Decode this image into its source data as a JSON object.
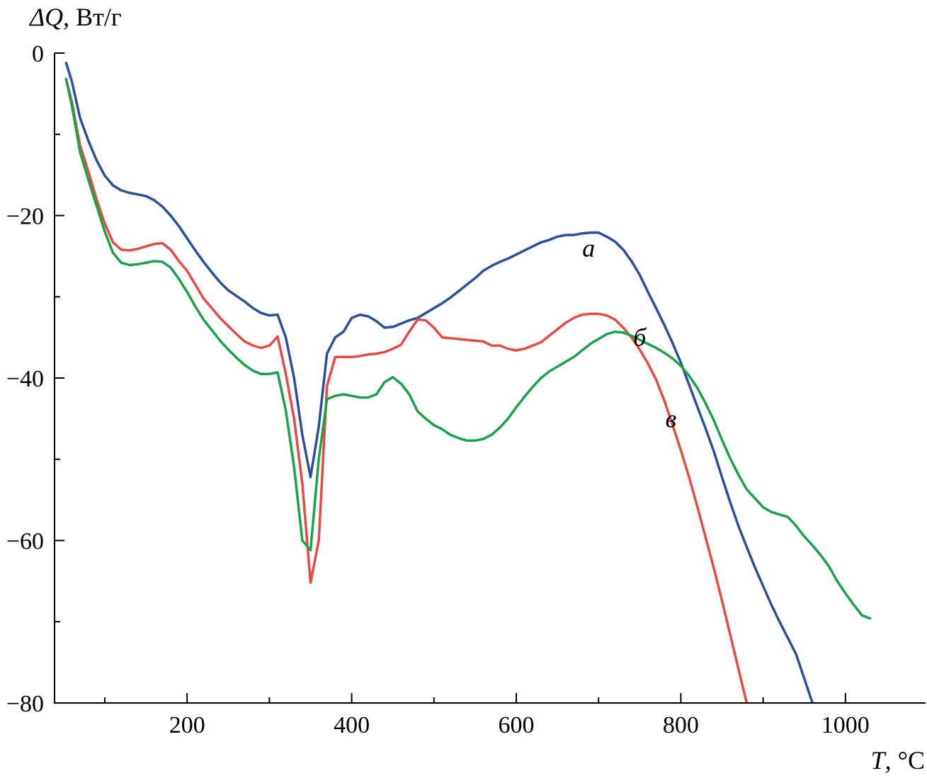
{
  "chart_data": {
    "type": "line",
    "title": "",
    "ylabel_symbol": "ΔQ",
    "ylabel_unit": ", Вт/г",
    "xlabel_symbol": "T",
    "xlabel_unit": ", °C",
    "xlim": [
      50,
      1100
    ],
    "ylim": [
      -80,
      0
    ],
    "x_major_ticks": [
      200,
      400,
      600,
      800,
      1000
    ],
    "x_minor_ticks": [
      100,
      300,
      500,
      700,
      900,
      1100
    ],
    "y_major_ticks": [
      0,
      -20,
      -40,
      -60,
      -80
    ],
    "y_minor_ticks": [
      -10,
      -30,
      -50,
      -70
    ],
    "x_tick_labels": [
      "200",
      "400",
      "600",
      "800",
      "1000"
    ],
    "y_tick_labels": [
      "0",
      "−20",
      "−40",
      "−60",
      "−80"
    ],
    "grid": false,
    "series": [
      {
        "name": "а",
        "color": "#2a4f9e",
        "label_at": [
          688,
          -24
        ],
        "points": [
          [
            53,
            -1.2
          ],
          [
            60,
            -3.5
          ],
          [
            70,
            -8
          ],
          [
            80,
            -10.8
          ],
          [
            90,
            -13.2
          ],
          [
            100,
            -15.1
          ],
          [
            110,
            -16.3
          ],
          [
            120,
            -16.9
          ],
          [
            130,
            -17.2
          ],
          [
            140,
            -17.4
          ],
          [
            150,
            -17.6
          ],
          [
            160,
            -18.1
          ],
          [
            170,
            -18.9
          ],
          [
            180,
            -20
          ],
          [
            190,
            -21.3
          ],
          [
            200,
            -22.8
          ],
          [
            210,
            -24.3
          ],
          [
            220,
            -25.7
          ],
          [
            230,
            -27
          ],
          [
            240,
            -28.2
          ],
          [
            250,
            -29.2
          ],
          [
            260,
            -29.9
          ],
          [
            270,
            -30.6
          ],
          [
            280,
            -31.4
          ],
          [
            290,
            -32
          ],
          [
            300,
            -32.3
          ],
          [
            310,
            -32.2
          ],
          [
            320,
            -35
          ],
          [
            330,
            -40
          ],
          [
            340,
            -47
          ],
          [
            350,
            -52.2
          ],
          [
            360,
            -46
          ],
          [
            370,
            -37
          ],
          [
            380,
            -35
          ],
          [
            390,
            -34.3
          ],
          [
            400,
            -32.6
          ],
          [
            410,
            -32.2
          ],
          [
            420,
            -32.4
          ],
          [
            430,
            -33
          ],
          [
            440,
            -33.8
          ],
          [
            450,
            -33.7
          ],
          [
            460,
            -33.3
          ],
          [
            470,
            -32.9
          ],
          [
            480,
            -32.6
          ],
          [
            490,
            -32
          ],
          [
            500,
            -31.4
          ],
          [
            510,
            -30.8
          ],
          [
            520,
            -30.1
          ],
          [
            530,
            -29.3
          ],
          [
            540,
            -28.5
          ],
          [
            550,
            -27.7
          ],
          [
            560,
            -26.8
          ],
          [
            570,
            -26.2
          ],
          [
            580,
            -25.7
          ],
          [
            590,
            -25.3
          ],
          [
            600,
            -24.8
          ],
          [
            610,
            -24.3
          ],
          [
            620,
            -23.8
          ],
          [
            630,
            -23.3
          ],
          [
            640,
            -23
          ],
          [
            650,
            -22.6
          ],
          [
            660,
            -22.4
          ],
          [
            670,
            -22.4
          ],
          [
            680,
            -22.2
          ],
          [
            690,
            -22.1
          ],
          [
            700,
            -22.1
          ],
          [
            710,
            -22.6
          ],
          [
            720,
            -23.2
          ],
          [
            730,
            -24.2
          ],
          [
            740,
            -25.6
          ],
          [
            750,
            -27.3
          ],
          [
            760,
            -29.4
          ],
          [
            770,
            -31.4
          ],
          [
            780,
            -33.5
          ],
          [
            790,
            -35.7
          ],
          [
            800,
            -38.1
          ],
          [
            810,
            -40.8
          ],
          [
            820,
            -43.5
          ],
          [
            830,
            -46.2
          ],
          [
            840,
            -49
          ],
          [
            850,
            -52.2
          ],
          [
            860,
            -55.3
          ],
          [
            870,
            -58.2
          ],
          [
            880,
            -60.8
          ],
          [
            890,
            -63.3
          ],
          [
            900,
            -65.6
          ],
          [
            910,
            -67.9
          ],
          [
            920,
            -70
          ],
          [
            930,
            -72
          ],
          [
            940,
            -74
          ],
          [
            950,
            -77
          ],
          [
            960,
            -80
          ],
          [
            968,
            -82.5
          ]
        ]
      },
      {
        "name": "б",
        "color": "#e64a44",
        "label_at": [
          750,
          -35
        ],
        "points": [
          [
            53,
            -3.2
          ],
          [
            60,
            -6
          ],
          [
            70,
            -11.4
          ],
          [
            80,
            -14.6
          ],
          [
            90,
            -18
          ],
          [
            100,
            -21
          ],
          [
            110,
            -23.3
          ],
          [
            120,
            -24.2
          ],
          [
            130,
            -24.3
          ],
          [
            140,
            -24.1
          ],
          [
            150,
            -23.8
          ],
          [
            160,
            -23.5
          ],
          [
            170,
            -23.4
          ],
          [
            180,
            -24.2
          ],
          [
            190,
            -25.6
          ],
          [
            200,
            -26.8
          ],
          [
            210,
            -28.5
          ],
          [
            220,
            -30.2
          ],
          [
            230,
            -31.4
          ],
          [
            240,
            -32.6
          ],
          [
            250,
            -33.6
          ],
          [
            260,
            -34.6
          ],
          [
            270,
            -35.5
          ],
          [
            280,
            -36
          ],
          [
            290,
            -36.3
          ],
          [
            300,
            -36
          ],
          [
            310,
            -34.9
          ],
          [
            320,
            -39.5
          ],
          [
            330,
            -45
          ],
          [
            340,
            -53
          ],
          [
            350,
            -65.2
          ],
          [
            360,
            -60
          ],
          [
            370,
            -41
          ],
          [
            380,
            -37.4
          ],
          [
            390,
            -37.4
          ],
          [
            400,
            -37.4
          ],
          [
            410,
            -37.3
          ],
          [
            420,
            -37.1
          ],
          [
            430,
            -37
          ],
          [
            440,
            -36.8
          ],
          [
            450,
            -36.4
          ],
          [
            460,
            -35.9
          ],
          [
            470,
            -34.3
          ],
          [
            480,
            -32.8
          ],
          [
            490,
            -32.9
          ],
          [
            500,
            -33.8
          ],
          [
            510,
            -35
          ],
          [
            520,
            -35.1
          ],
          [
            530,
            -35.2
          ],
          [
            540,
            -35.3
          ],
          [
            550,
            -35.4
          ],
          [
            560,
            -35.5
          ],
          [
            570,
            -36
          ],
          [
            580,
            -36
          ],
          [
            590,
            -36.4
          ],
          [
            600,
            -36.6
          ],
          [
            610,
            -36.4
          ],
          [
            620,
            -36
          ],
          [
            630,
            -35.6
          ],
          [
            640,
            -34.8
          ],
          [
            650,
            -34
          ],
          [
            660,
            -33.2
          ],
          [
            670,
            -32.6
          ],
          [
            680,
            -32.2
          ],
          [
            690,
            -32.1
          ],
          [
            700,
            -32.1
          ],
          [
            710,
            -32.3
          ],
          [
            720,
            -32.8
          ],
          [
            730,
            -33.8
          ],
          [
            740,
            -35
          ],
          [
            750,
            -36.5
          ],
          [
            760,
            -38.2
          ],
          [
            770,
            -40.2
          ],
          [
            780,
            -42.8
          ],
          [
            790,
            -45.8
          ],
          [
            800,
            -48.9
          ],
          [
            810,
            -52.2
          ],
          [
            820,
            -55.8
          ],
          [
            830,
            -59.6
          ],
          [
            840,
            -63.4
          ],
          [
            850,
            -67.4
          ],
          [
            860,
            -71.6
          ],
          [
            870,
            -75.8
          ],
          [
            880,
            -80
          ],
          [
            884,
            -82
          ]
        ]
      },
      {
        "name": "в",
        "color": "#1aa24b",
        "label_at": [
          788,
          -45
        ],
        "points": [
          [
            53,
            -3.2
          ],
          [
            60,
            -6.5
          ],
          [
            70,
            -12.2
          ],
          [
            80,
            -15.6
          ],
          [
            90,
            -18.8
          ],
          [
            100,
            -22
          ],
          [
            110,
            -24.6
          ],
          [
            120,
            -25.8
          ],
          [
            130,
            -26.1
          ],
          [
            140,
            -26
          ],
          [
            150,
            -25.8
          ],
          [
            160,
            -25.6
          ],
          [
            170,
            -25.7
          ],
          [
            180,
            -26.4
          ],
          [
            190,
            -27.8
          ],
          [
            200,
            -29.4
          ],
          [
            210,
            -31.2
          ],
          [
            220,
            -32.8
          ],
          [
            230,
            -34.1
          ],
          [
            240,
            -35.4
          ],
          [
            250,
            -36.5
          ],
          [
            260,
            -37.5
          ],
          [
            270,
            -38.4
          ],
          [
            280,
            -39.1
          ],
          [
            290,
            -39.5
          ],
          [
            300,
            -39.5
          ],
          [
            310,
            -39.3
          ],
          [
            320,
            -44
          ],
          [
            330,
            -51
          ],
          [
            340,
            -60
          ],
          [
            350,
            -61.2
          ],
          [
            360,
            -50
          ],
          [
            370,
            -42.6
          ],
          [
            380,
            -42.2
          ],
          [
            390,
            -42
          ],
          [
            400,
            -42.2
          ],
          [
            410,
            -42.4
          ],
          [
            420,
            -42.4
          ],
          [
            430,
            -42
          ],
          [
            440,
            -40.5
          ],
          [
            450,
            -39.9
          ],
          [
            460,
            -40.7
          ],
          [
            470,
            -42
          ],
          [
            480,
            -44.1
          ],
          [
            490,
            -45
          ],
          [
            500,
            -45.8
          ],
          [
            510,
            -46.3
          ],
          [
            520,
            -47
          ],
          [
            530,
            -47.4
          ],
          [
            540,
            -47.7
          ],
          [
            550,
            -47.7
          ],
          [
            560,
            -47.5
          ],
          [
            570,
            -47
          ],
          [
            580,
            -46.1
          ],
          [
            590,
            -45
          ],
          [
            600,
            -43.6
          ],
          [
            610,
            -42.3
          ],
          [
            620,
            -41.1
          ],
          [
            630,
            -40
          ],
          [
            640,
            -39.2
          ],
          [
            650,
            -38.6
          ],
          [
            660,
            -38
          ],
          [
            670,
            -37.4
          ],
          [
            680,
            -36.6
          ],
          [
            690,
            -35.8
          ],
          [
            700,
            -35.2
          ],
          [
            710,
            -34.6
          ],
          [
            720,
            -34.3
          ],
          [
            730,
            -34.4
          ],
          [
            740,
            -34.8
          ],
          [
            750,
            -35.3
          ],
          [
            760,
            -35.8
          ],
          [
            770,
            -36.3
          ],
          [
            780,
            -36.9
          ],
          [
            790,
            -37.6
          ],
          [
            800,
            -38.5
          ],
          [
            810,
            -39.7
          ],
          [
            820,
            -41.2
          ],
          [
            830,
            -43.1
          ],
          [
            840,
            -45.2
          ],
          [
            850,
            -47.6
          ],
          [
            860,
            -49.9
          ],
          [
            870,
            -51.9
          ],
          [
            880,
            -53.7
          ],
          [
            890,
            -54.8
          ],
          [
            900,
            -55.9
          ],
          [
            910,
            -56.5
          ],
          [
            920,
            -56.8
          ],
          [
            930,
            -57.1
          ],
          [
            940,
            -58.2
          ],
          [
            950,
            -59.5
          ],
          [
            960,
            -60.6
          ],
          [
            970,
            -61.8
          ],
          [
            980,
            -63.2
          ],
          [
            990,
            -65
          ],
          [
            1000,
            -66.5
          ],
          [
            1010,
            -67.9
          ],
          [
            1020,
            -69.2
          ],
          [
            1030,
            -69.6
          ]
        ]
      }
    ]
  }
}
